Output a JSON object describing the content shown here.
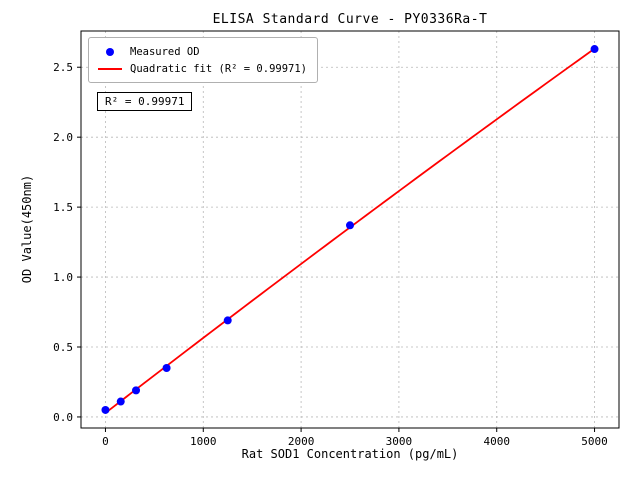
{
  "figure": {
    "title": "ELISA Standard Curve - PY0336Ra-T",
    "xlabel": "Rat SOD1 Concentration (pg/mL)",
    "ylabel": "OD Value(450nm)",
    "legend": {
      "measured_label": "Measured OD",
      "fit_label": "Quadratic fit (R² = 0.99971)"
    },
    "annotation": "R² = 0.99971",
    "colors": {
      "scatter": "#0000ff",
      "fit_line": "#ff0000",
      "grid": "#b8b8b8",
      "frame": "#000000"
    }
  },
  "chart_data": {
    "type": "scatter",
    "title": "ELISA Standard Curve - PY0336Ra-T",
    "xlabel": "Rat SOD1 Concentration (pg/mL)",
    "ylabel": "OD Value(450nm)",
    "series": [
      {
        "name": "Measured OD",
        "type": "scatter",
        "x": [
          0,
          156.25,
          312.5,
          625,
          1250,
          2500,
          5000
        ],
        "y": [
          0.05,
          0.11,
          0.19,
          0.35,
          0.69,
          1.37,
          2.63
        ]
      },
      {
        "name": "Quadratic fit (R² = 0.99971)",
        "type": "line",
        "fit": "quadratic",
        "r_squared": 0.99971
      }
    ],
    "x_ticks": [
      0,
      1000,
      2000,
      3000,
      4000,
      5000
    ],
    "x_tick_labels": [
      "0",
      "1000",
      "2000",
      "3000",
      "4000",
      "5000"
    ],
    "y_ticks": [
      0.0,
      0.5,
      1.0,
      1.5,
      2.0,
      2.5
    ],
    "y_tick_labels": [
      "0.0",
      "0.5",
      "1.0",
      "1.5",
      "2.0",
      "2.5"
    ],
    "xlim": [
      -250,
      5250
    ],
    "ylim": [
      -0.079,
      2.759
    ],
    "grid": true,
    "legend_position": "upper left",
    "annotation": "R² = 0.99971"
  }
}
